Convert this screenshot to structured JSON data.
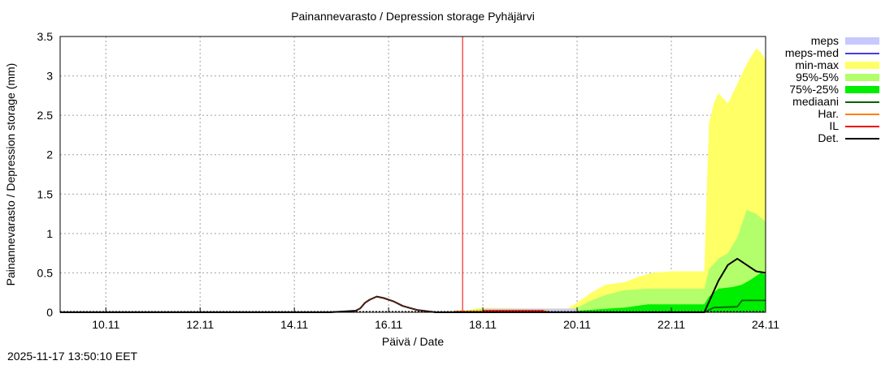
{
  "chart_data": {
    "type": "area",
    "title": "Painannevarasto / Depression storage   Pyhäjärvi",
    "xlabel": "Päivä / Date",
    "ylabel": "Painannevarasto / Depression storage (mm)",
    "ylim": [
      0,
      3.5
    ],
    "xlim_days": [
      9.03,
      24.0
    ],
    "x_ticks": [
      "10.11",
      "12.11",
      "14.11",
      "16.11",
      "18.11",
      "20.11",
      "22.11",
      "24.11"
    ],
    "y_ticks": [
      "0",
      "0.5",
      "1",
      "1.5",
      "2",
      "2.5",
      "3",
      "3.5"
    ],
    "grid": true,
    "legend_position": "right",
    "forecast_start_day": 17.57,
    "series": [
      {
        "name": "min-max",
        "type": "band",
        "color": "#ffff66",
        "x": [
          17.6,
          18.0,
          19.0,
          19.8,
          20.0,
          20.3,
          20.6,
          21.0,
          21.3,
          21.6,
          22.0,
          22.5,
          22.7,
          22.75,
          22.8,
          22.9,
          23.0,
          23.2,
          23.4,
          23.6,
          23.8,
          23.9,
          24.0
        ],
        "upper": [
          0.02,
          0.06,
          0.05,
          0.05,
          0.12,
          0.25,
          0.35,
          0.38,
          0.45,
          0.5,
          0.52,
          0.52,
          0.52,
          1.5,
          2.4,
          2.65,
          2.78,
          2.65,
          2.9,
          3.15,
          3.35,
          3.3,
          3.2
        ],
        "lower": [
          0,
          0,
          0,
          0,
          0,
          0,
          0,
          0,
          0,
          0,
          0,
          0,
          0,
          0,
          0,
          0,
          0,
          0,
          0,
          0,
          0,
          0,
          0
        ]
      },
      {
        "name": "95%-5%",
        "type": "band",
        "color": "#b3ff6b",
        "x": [
          17.6,
          18.0,
          19.0,
          19.8,
          20.0,
          20.3,
          20.6,
          21.0,
          21.5,
          22.0,
          22.5,
          22.7,
          22.8,
          23.0,
          23.2,
          23.4,
          23.6,
          23.8,
          24.0
        ],
        "upper": [
          0.02,
          0.04,
          0.03,
          0.03,
          0.06,
          0.15,
          0.22,
          0.28,
          0.3,
          0.3,
          0.3,
          0.3,
          0.55,
          0.68,
          0.75,
          0.95,
          1.3,
          1.25,
          1.15
        ],
        "lower": [
          0,
          0,
          0,
          0,
          0,
          0,
          0,
          0,
          0,
          0,
          0,
          0,
          0,
          0,
          0,
          0,
          0,
          0,
          0
        ]
      },
      {
        "name": "75%-25%",
        "type": "band",
        "color": "#00ee00",
        "x": [
          17.6,
          18.0,
          19.0,
          20.0,
          20.5,
          21.0,
          21.5,
          22.0,
          22.5,
          22.7,
          22.8,
          23.0,
          23.3,
          23.5,
          23.7,
          23.9,
          24.0
        ],
        "upper": [
          0.01,
          0.02,
          0.01,
          0.02,
          0.04,
          0.06,
          0.1,
          0.1,
          0.1,
          0.1,
          0.2,
          0.3,
          0.32,
          0.35,
          0.42,
          0.5,
          0.48
        ],
        "lower": [
          0,
          0,
          0,
          0,
          0,
          0,
          0,
          0,
          0,
          0,
          0,
          0,
          0,
          0,
          0,
          0,
          0
        ]
      },
      {
        "name": "mediaani",
        "type": "line",
        "color": "#006400",
        "x": [
          17.6,
          22.7,
          22.9,
          23.4,
          23.5,
          24.0
        ],
        "y": [
          0.0,
          0.0,
          0.06,
          0.07,
          0.15,
          0.15
        ]
      },
      {
        "name": "Det.",
        "type": "line",
        "color": "#000000",
        "x": [
          9.03,
          14.75,
          15.3,
          15.4,
          15.5,
          15.6,
          15.75,
          15.9,
          16.1,
          16.3,
          16.6,
          17.0,
          17.57,
          22.7,
          22.85,
          23.0,
          23.2,
          23.4,
          23.6,
          23.8,
          24.0
        ],
        "y": [
          0.0,
          0.0,
          0.02,
          0.05,
          0.12,
          0.16,
          0.2,
          0.18,
          0.14,
          0.08,
          0.03,
          0.0,
          0.0,
          0.0,
          0.2,
          0.4,
          0.6,
          0.68,
          0.6,
          0.52,
          0.5
        ]
      },
      {
        "name": "meps",
        "type": "band",
        "color": "#c8c8ff",
        "values": "small band near 0 between 18.0 and 20.0"
      },
      {
        "name": "meps-med",
        "type": "line",
        "color": "#4040e0"
      },
      {
        "name": "Har.",
        "type": "line",
        "color": "#ff8000"
      },
      {
        "name": "IL",
        "type": "line",
        "color": "#ee0000"
      }
    ]
  },
  "header": {
    "title": "Painannevarasto / Depression storage   Pyhäjärvi"
  },
  "axes": {
    "xlabel": "Päivä / Date",
    "ylabel": "Painannevarasto / Depression storage (mm)"
  },
  "legend": {
    "items": [
      {
        "label": "meps",
        "color": "#c8c8ff",
        "kind": "band"
      },
      {
        "label": "meps-med",
        "color": "#4040e0",
        "kind": "line"
      },
      {
        "label": "min-max",
        "color": "#ffff66",
        "kind": "band"
      },
      {
        "label": "95%-5%",
        "color": "#b3ff6b",
        "kind": "band"
      },
      {
        "label": "75%-25%",
        "color": "#00ee00",
        "kind": "band"
      },
      {
        "label": "mediaani",
        "color": "#006400",
        "kind": "line"
      },
      {
        "label": "Har.",
        "color": "#ff8000",
        "kind": "line"
      },
      {
        "label": "IL",
        "color": "#ee0000",
        "kind": "line"
      },
      {
        "label": "Det.",
        "color": "#000000",
        "kind": "line"
      }
    ]
  },
  "footer": {
    "timestamp": "2025-11-17 13:50:10 EET"
  }
}
